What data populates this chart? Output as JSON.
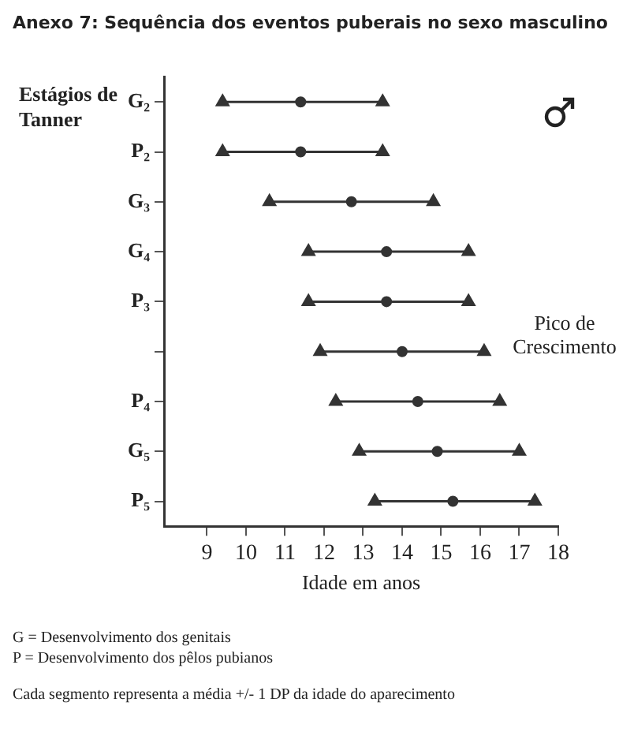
{
  "chart_data": {
    "type": "scatter",
    "orientation": "horizontal",
    "title": "Anexo  7: Sequência dos eventos puberais no sexo masculino",
    "ylabel": "Estágios de Tanner",
    "xlabel": "Idade em anos",
    "categories": [
      "G₂",
      "P₂",
      "G₃",
      "G₄",
      "P₃",
      null,
      "P₄",
      "G₅",
      "P₅"
    ],
    "series": [
      {
        "color": "#333333",
        "marker": "circle",
        "values": [
          11.4,
          11.4,
          12.7,
          13.6,
          13.6,
          14.0,
          14.4,
          14.9,
          15.3
        ]
      },
      {
        "color": "#333333",
        "marker": "triangle",
        "values": [
          9.4,
          9.4,
          10.6,
          11.6,
          11.6,
          11.9,
          12.3,
          12.9,
          13.3
        ]
      },
      {
        "color": "#333333",
        "marker": "triangle",
        "values": [
          13.5,
          13.5,
          14.8,
          15.7,
          15.7,
          16.1,
          16.5,
          17.0,
          17.4
        ]
      }
    ],
    "xlim": [
      7.9,
      18
    ],
    "xticks": [
      9,
      10,
      11,
      12,
      13,
      14,
      15,
      16,
      17,
      18
    ],
    "annotations": [
      "Pico de Crescimento",
      "G = Desenvolvimento dos genitais",
      "P = Desenvolvimento dos  pêlos pubianos",
      "Cada segmento representa a média +/- 1 DP da idade do aparecimento"
    ]
  }
}
